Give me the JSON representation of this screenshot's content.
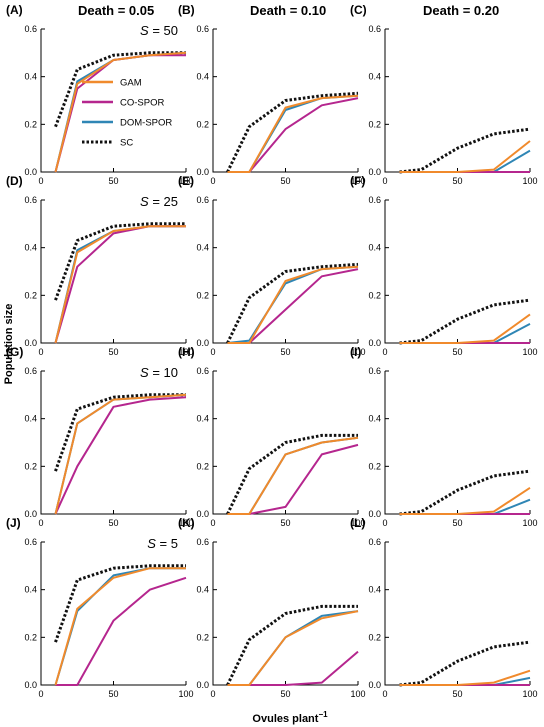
{
  "figure": {
    "column_titles": [
      "Death = 0.05",
      "Death = 0.10",
      "Death = 0.20"
    ],
    "y_axis_label": "Population size",
    "x_axis_label_main": "Ovules plant",
    "x_axis_label_sup": "−1",
    "s_label_prefix": "S",
    "s_label_eq": " = "
  },
  "legend": [
    {
      "name": "GAM",
      "color": "#f08a2c",
      "dash": "solid"
    },
    {
      "name": "CO-SPOR",
      "color": "#b5268e",
      "dash": "solid"
    },
    {
      "name": "DOM-SPOR",
      "color": "#2f86b5",
      "dash": "solid"
    },
    {
      "name": "SC",
      "color": "#111111",
      "dash": "dotted"
    }
  ],
  "chart_data": [
    {
      "type": "line",
      "panel": "(A)",
      "row_S": "50",
      "death": "0.05",
      "x": [
        10,
        25,
        50,
        75,
        100
      ],
      "xlim": [
        0,
        100
      ],
      "ylim": [
        0,
        0.6
      ],
      "xticks": [
        "0",
        "50",
        "100"
      ],
      "yticks": [
        "0.0",
        "0.2",
        "0.4",
        "0.6"
      ],
      "series": [
        {
          "name": "GAM",
          "values": [
            0.0,
            0.37,
            0.47,
            0.49,
            0.5
          ]
        },
        {
          "name": "CO-SPOR",
          "values": [
            0.0,
            0.35,
            0.47,
            0.49,
            0.49
          ]
        },
        {
          "name": "DOM-SPOR",
          "values": [
            0.0,
            0.38,
            0.47,
            0.49,
            0.5
          ]
        },
        {
          "name": "SC",
          "values": [
            0.19,
            0.43,
            0.49,
            0.5,
            0.5
          ]
        }
      ]
    },
    {
      "type": "line",
      "panel": "(B)",
      "row_S": "50",
      "death": "0.10",
      "x": [
        10,
        25,
        50,
        75,
        100
      ],
      "xlim": [
        0,
        100
      ],
      "ylim": [
        0,
        0.6
      ],
      "xticks": [
        "0",
        "50",
        "100"
      ],
      "yticks": [
        "0.0",
        "0.2",
        "0.4",
        "0.6"
      ],
      "series": [
        {
          "name": "GAM",
          "values": [
            0.0,
            0.0,
            0.27,
            0.31,
            0.32
          ]
        },
        {
          "name": "CO-SPOR",
          "values": [
            0.0,
            0.0,
            0.18,
            0.28,
            0.31
          ]
        },
        {
          "name": "DOM-SPOR",
          "values": [
            0.0,
            0.0,
            0.26,
            0.31,
            0.32
          ]
        },
        {
          "name": "SC",
          "values": [
            0.0,
            0.19,
            0.3,
            0.32,
            0.33
          ]
        }
      ]
    },
    {
      "type": "line",
      "panel": "(C)",
      "row_S": "50",
      "death": "0.20",
      "x": [
        10,
        25,
        50,
        75,
        100
      ],
      "xlim": [
        0,
        100
      ],
      "ylim": [
        0,
        0.6
      ],
      "xticks": [
        "0",
        "50",
        "100"
      ],
      "yticks": [
        "0.0",
        "0.2",
        "0.4",
        "0.6"
      ],
      "series": [
        {
          "name": "GAM",
          "values": [
            0.0,
            0.0,
            0.0,
            0.01,
            0.13
          ]
        },
        {
          "name": "CO-SPOR",
          "values": [
            0.0,
            0.0,
            0.0,
            0.0,
            0.0
          ]
        },
        {
          "name": "DOM-SPOR",
          "values": [
            0.0,
            0.0,
            0.0,
            0.0,
            0.09
          ]
        },
        {
          "name": "SC",
          "values": [
            0.0,
            0.01,
            0.1,
            0.16,
            0.18
          ]
        }
      ]
    },
    {
      "type": "line",
      "panel": "(D)",
      "row_S": "25",
      "death": "0.05",
      "x": [
        10,
        25,
        50,
        75,
        100
      ],
      "xlim": [
        0,
        100
      ],
      "ylim": [
        0,
        0.6
      ],
      "xticks": [
        "0",
        "50",
        "100"
      ],
      "yticks": [
        "0.0",
        "0.2",
        "0.4",
        "0.6"
      ],
      "series": [
        {
          "name": "GAM",
          "values": [
            0.0,
            0.38,
            0.47,
            0.49,
            0.49
          ]
        },
        {
          "name": "CO-SPOR",
          "values": [
            0.0,
            0.32,
            0.46,
            0.49,
            0.49
          ]
        },
        {
          "name": "DOM-SPOR",
          "values": [
            0.0,
            0.39,
            0.47,
            0.49,
            0.49
          ]
        },
        {
          "name": "SC",
          "values": [
            0.18,
            0.43,
            0.49,
            0.5,
            0.5
          ]
        }
      ]
    },
    {
      "type": "line",
      "panel": "(E)",
      "row_S": "25",
      "death": "0.10",
      "x": [
        10,
        25,
        50,
        75,
        100
      ],
      "xlim": [
        0,
        100
      ],
      "ylim": [
        0,
        0.6
      ],
      "xticks": [
        "0",
        "50",
        "100"
      ],
      "yticks": [
        "0.0",
        "0.2",
        "0.4",
        "0.6"
      ],
      "series": [
        {
          "name": "GAM",
          "values": [
            0.0,
            0.0,
            0.26,
            0.31,
            0.32
          ]
        },
        {
          "name": "CO-SPOR",
          "values": [
            0.0,
            0.0,
            0.14,
            0.28,
            0.31
          ]
        },
        {
          "name": "DOM-SPOR",
          "values": [
            0.0,
            0.01,
            0.25,
            0.31,
            0.32
          ]
        },
        {
          "name": "SC",
          "values": [
            0.0,
            0.19,
            0.3,
            0.32,
            0.33
          ]
        }
      ]
    },
    {
      "type": "line",
      "panel": "(F)",
      "row_S": "25",
      "death": "0.20",
      "x": [
        10,
        25,
        50,
        75,
        100
      ],
      "xlim": [
        0,
        100
      ],
      "ylim": [
        0,
        0.6
      ],
      "xticks": [
        "0",
        "50",
        "100"
      ],
      "yticks": [
        "0.0",
        "0.2",
        "0.4",
        "0.6"
      ],
      "series": [
        {
          "name": "GAM",
          "values": [
            0.0,
            0.0,
            0.0,
            0.01,
            0.12
          ]
        },
        {
          "name": "CO-SPOR",
          "values": [
            0.0,
            0.0,
            0.0,
            0.0,
            0.0
          ]
        },
        {
          "name": "DOM-SPOR",
          "values": [
            0.0,
            0.0,
            0.0,
            0.0,
            0.08
          ]
        },
        {
          "name": "SC",
          "values": [
            0.0,
            0.01,
            0.1,
            0.16,
            0.18
          ]
        }
      ]
    },
    {
      "type": "line",
      "panel": "(G)",
      "row_S": "10",
      "death": "0.05",
      "x": [
        10,
        25,
        50,
        75,
        100
      ],
      "xlim": [
        0,
        100
      ],
      "ylim": [
        0,
        0.6
      ],
      "xticks": [
        "0",
        "50",
        "100"
      ],
      "yticks": [
        "0.0",
        "0.2",
        "0.4",
        "0.6"
      ],
      "series": [
        {
          "name": "GAM",
          "values": [
            0.0,
            0.38,
            0.48,
            0.49,
            0.5
          ]
        },
        {
          "name": "CO-SPOR",
          "values": [
            0.0,
            0.2,
            0.45,
            0.48,
            0.49
          ]
        },
        {
          "name": "DOM-SPOR",
          "values": [
            0.0,
            0.38,
            0.48,
            0.49,
            0.5
          ]
        },
        {
          "name": "SC",
          "values": [
            0.18,
            0.44,
            0.49,
            0.5,
            0.5
          ]
        }
      ]
    },
    {
      "type": "line",
      "panel": "(H)",
      "row_S": "10",
      "death": "0.10",
      "x": [
        10,
        25,
        50,
        75,
        100
      ],
      "xlim": [
        0,
        100
      ],
      "ylim": [
        0,
        0.6
      ],
      "xticks": [
        "0",
        "50",
        "100"
      ],
      "yticks": [
        "0.0",
        "0.2",
        "0.4",
        "0.6"
      ],
      "series": [
        {
          "name": "GAM",
          "values": [
            0.0,
            0.0,
            0.25,
            0.3,
            0.32
          ]
        },
        {
          "name": "CO-SPOR",
          "values": [
            0.0,
            0.0,
            0.03,
            0.25,
            0.29
          ]
        },
        {
          "name": "DOM-SPOR",
          "values": [
            0.0,
            0.0,
            0.25,
            0.3,
            0.32
          ]
        },
        {
          "name": "SC",
          "values": [
            0.0,
            0.19,
            0.3,
            0.33,
            0.33
          ]
        }
      ]
    },
    {
      "type": "line",
      "panel": "(I)",
      "row_S": "10",
      "death": "0.20",
      "x": [
        10,
        25,
        50,
        75,
        100
      ],
      "xlim": [
        0,
        100
      ],
      "ylim": [
        0,
        0.6
      ],
      "xticks": [
        "0",
        "50",
        "100"
      ],
      "yticks": [
        "0.0",
        "0.2",
        "0.4",
        "0.6"
      ],
      "series": [
        {
          "name": "GAM",
          "values": [
            0.0,
            0.0,
            0.0,
            0.01,
            0.11
          ]
        },
        {
          "name": "CO-SPOR",
          "values": [
            0.0,
            0.0,
            0.0,
            0.0,
            0.0
          ]
        },
        {
          "name": "DOM-SPOR",
          "values": [
            0.0,
            0.0,
            0.0,
            0.0,
            0.06
          ]
        },
        {
          "name": "SC",
          "values": [
            0.0,
            0.01,
            0.1,
            0.16,
            0.18
          ]
        }
      ]
    },
    {
      "type": "line",
      "panel": "(J)",
      "row_S": "5",
      "death": "0.05",
      "x": [
        10,
        25,
        50,
        75,
        100
      ],
      "xlim": [
        0,
        100
      ],
      "ylim": [
        0,
        0.6
      ],
      "xticks": [
        "0",
        "50",
        "100"
      ],
      "yticks": [
        "0.0",
        "0.2",
        "0.4",
        "0.6"
      ],
      "series": [
        {
          "name": "GAM",
          "values": [
            0.0,
            0.32,
            0.45,
            0.49,
            0.49
          ]
        },
        {
          "name": "CO-SPOR",
          "values": [
            0.0,
            0.0,
            0.27,
            0.4,
            0.45
          ]
        },
        {
          "name": "DOM-SPOR",
          "values": [
            0.0,
            0.31,
            0.46,
            0.49,
            0.49
          ]
        },
        {
          "name": "SC",
          "values": [
            0.18,
            0.44,
            0.49,
            0.5,
            0.5
          ]
        }
      ]
    },
    {
      "type": "line",
      "panel": "(K)",
      "row_S": "5",
      "death": "0.10",
      "x": [
        10,
        25,
        50,
        75,
        100
      ],
      "xlim": [
        0,
        100
      ],
      "ylim": [
        0,
        0.6
      ],
      "xticks": [
        "0",
        "50",
        "100"
      ],
      "yticks": [
        "0.0",
        "0.2",
        "0.4",
        "0.6"
      ],
      "series": [
        {
          "name": "GAM",
          "values": [
            0.0,
            0.0,
            0.2,
            0.28,
            0.31
          ]
        },
        {
          "name": "CO-SPOR",
          "values": [
            0.0,
            0.0,
            0.0,
            0.01,
            0.14
          ]
        },
        {
          "name": "DOM-SPOR",
          "values": [
            0.0,
            0.0,
            0.2,
            0.29,
            0.31
          ]
        },
        {
          "name": "SC",
          "values": [
            0.0,
            0.19,
            0.3,
            0.33,
            0.33
          ]
        }
      ]
    },
    {
      "type": "line",
      "panel": "(L)",
      "row_S": "5",
      "death": "0.20",
      "x": [
        10,
        25,
        50,
        75,
        100
      ],
      "xlim": [
        0,
        100
      ],
      "ylim": [
        0,
        0.6
      ],
      "xticks": [
        "0",
        "50",
        "100"
      ],
      "yticks": [
        "0.0",
        "0.2",
        "0.4",
        "0.6"
      ],
      "series": [
        {
          "name": "GAM",
          "values": [
            0.0,
            0.0,
            0.0,
            0.01,
            0.06
          ]
        },
        {
          "name": "CO-SPOR",
          "values": [
            0.0,
            0.0,
            0.0,
            0.0,
            0.0
          ]
        },
        {
          "name": "DOM-SPOR",
          "values": [
            0.0,
            0.0,
            0.0,
            0.0,
            0.03
          ]
        },
        {
          "name": "SC",
          "values": [
            0.0,
            0.01,
            0.1,
            0.16,
            0.18
          ]
        }
      ]
    }
  ]
}
